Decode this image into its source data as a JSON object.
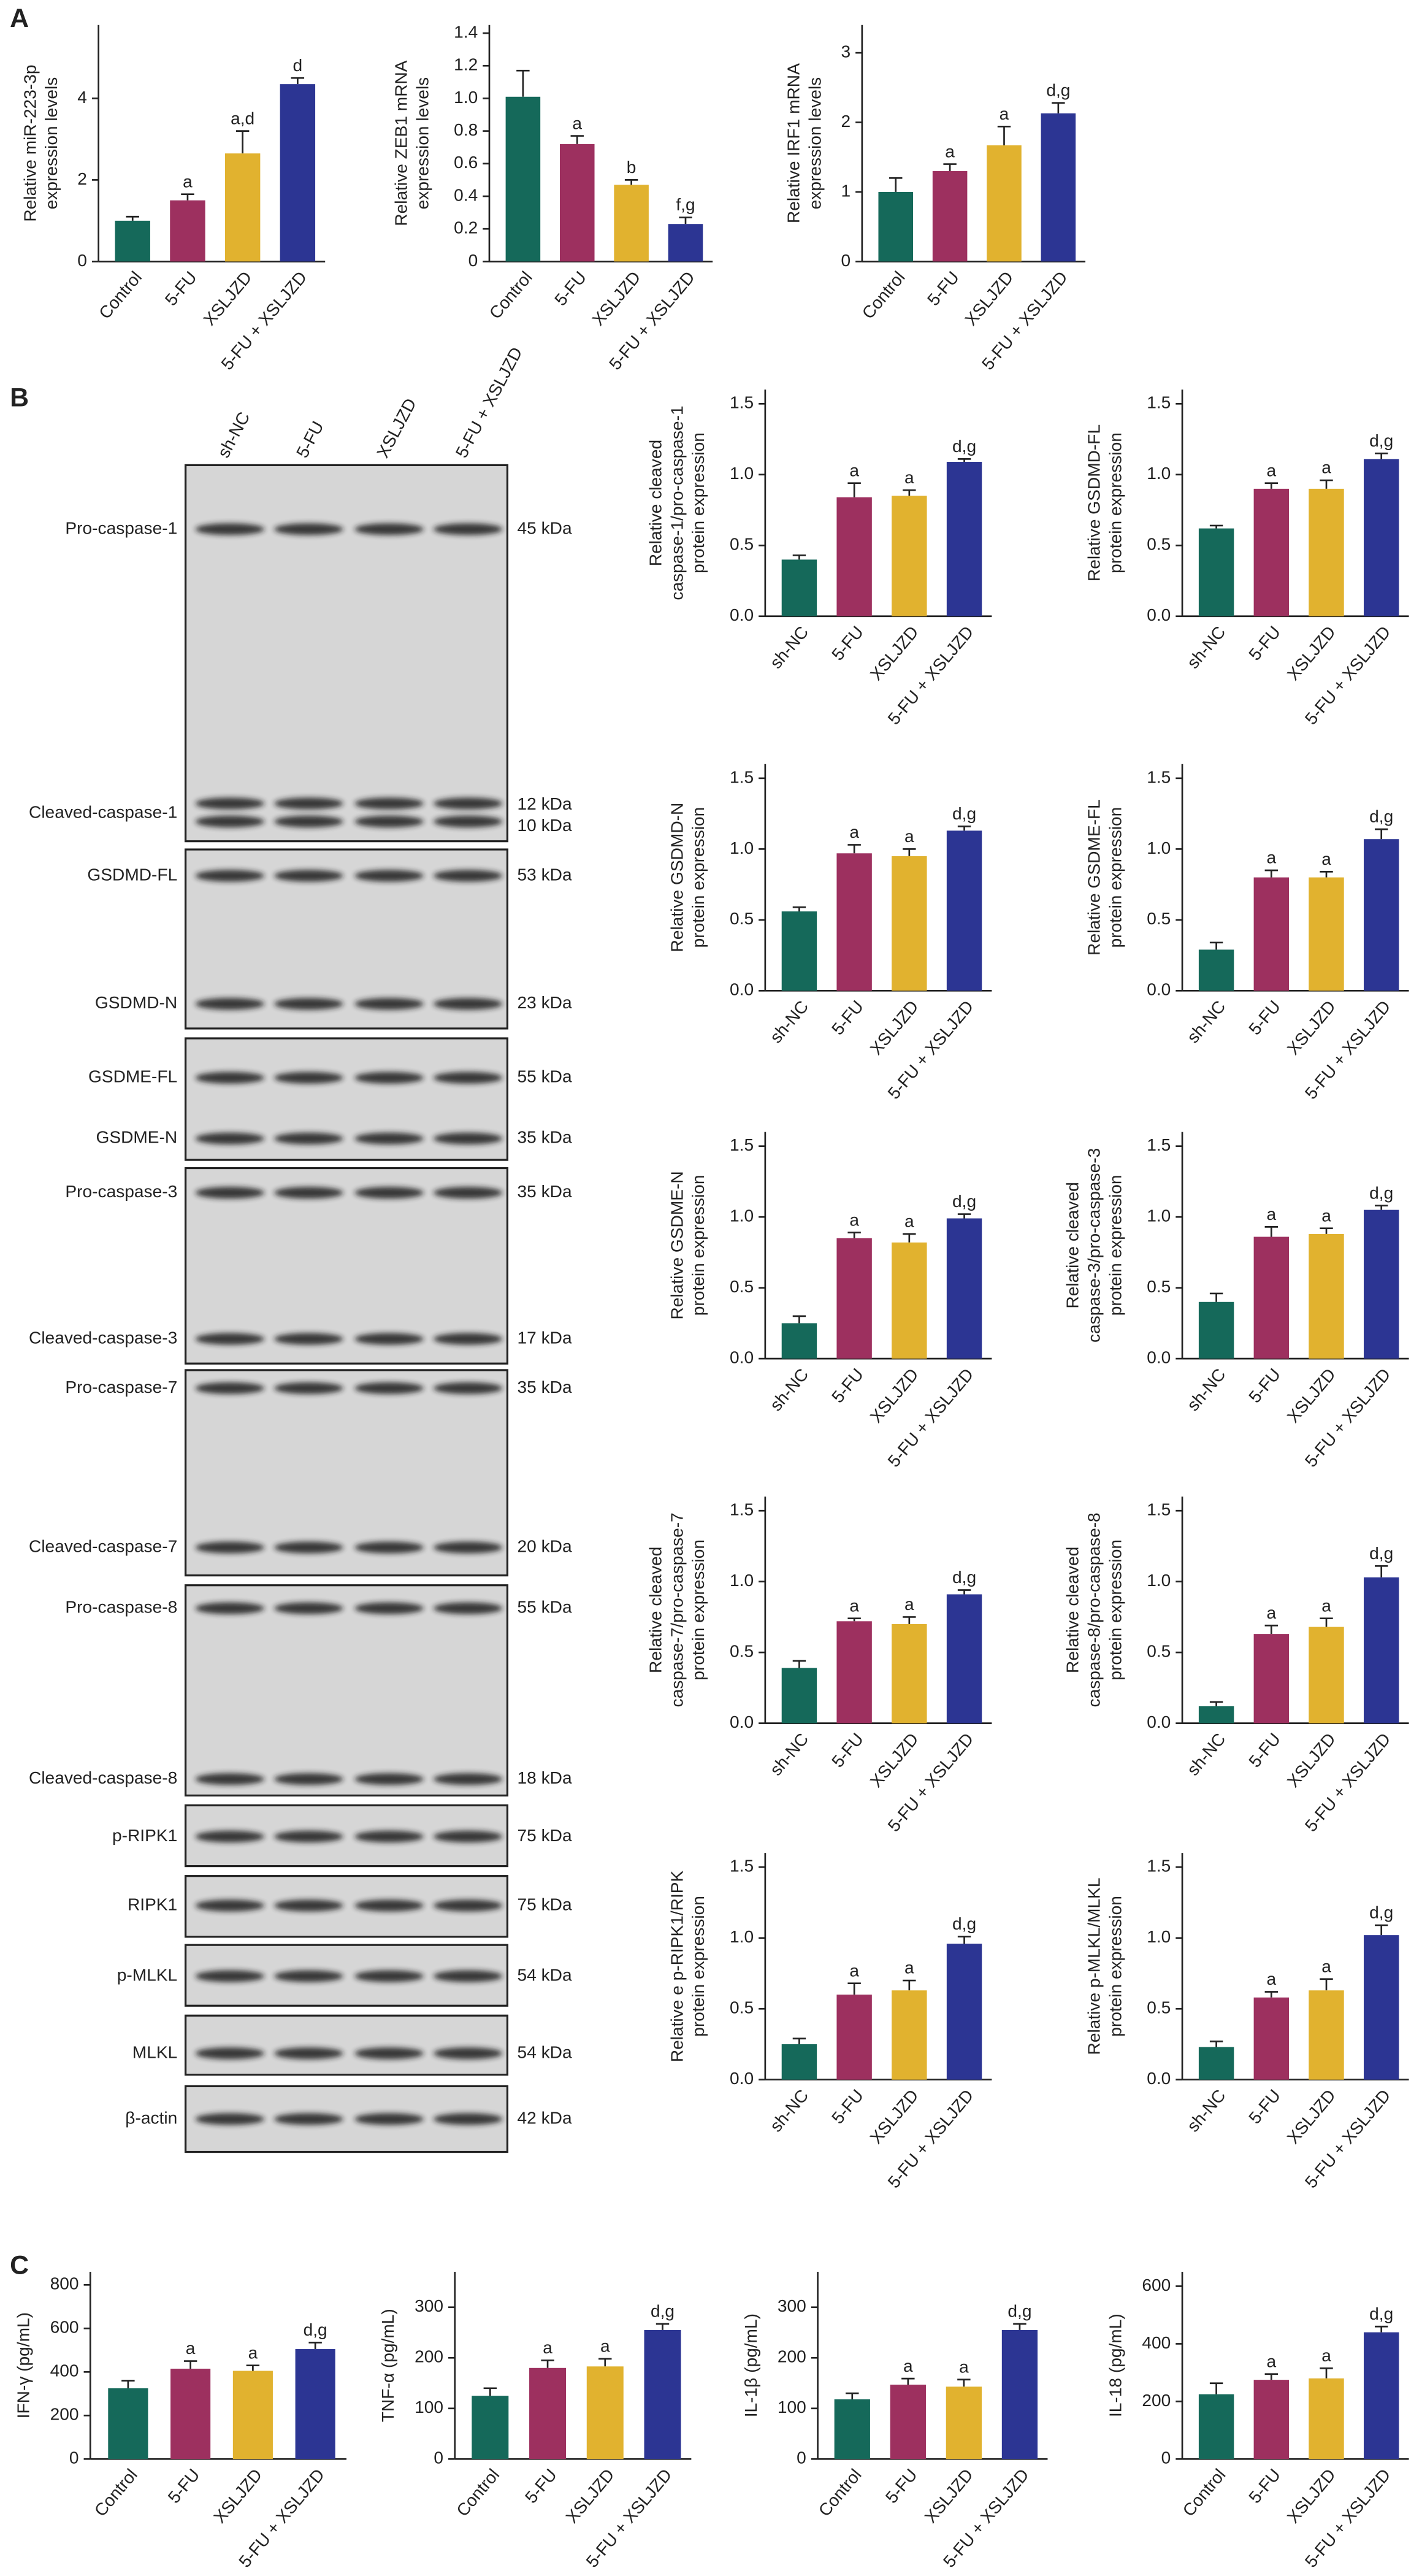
{
  "panel_labels": [
    "A",
    "B",
    "C"
  ],
  "blot": {
    "lanes": [
      "sh-NC",
      "5-FU",
      "XSLJZD",
      "5-FU + XSLJZD"
    ],
    "rows": [
      {
        "label": "Pro-caspase-1",
        "kda": [
          "45 kDa"
        ]
      },
      {
        "label": "Cleaved-caspase-1",
        "kda": [
          "12 kDa",
          "10 kDa"
        ]
      },
      {
        "label": "GSDMD-FL",
        "kda": [
          "53 kDa"
        ]
      },
      {
        "label": "GSDMD-N",
        "kda": [
          "23 kDa"
        ]
      },
      {
        "label": "GSDME-FL",
        "kda": [
          "55 kDa"
        ]
      },
      {
        "label": "GSDME-N",
        "kda": [
          "35 kDa"
        ]
      },
      {
        "label": "Pro-caspase-3",
        "kda": [
          "35 kDa"
        ]
      },
      {
        "label": "Cleaved-caspase-3",
        "kda": [
          "17 kDa"
        ]
      },
      {
        "label": "Pro-caspase-7",
        "kda": [
          "35 kDa"
        ]
      },
      {
        "label": "Cleaved-caspase-7",
        "kda": [
          "20 kDa"
        ]
      },
      {
        "label": "Pro-caspase-8",
        "kda": [
          "55 kDa"
        ]
      },
      {
        "label": "Cleaved-caspase-8",
        "kda": [
          "18 kDa"
        ]
      },
      {
        "label": "p-RIPK1",
        "kda": [
          "75 kDa"
        ]
      },
      {
        "label": "RIPK1",
        "kda": [
          "75 kDa"
        ]
      },
      {
        "label": "p-MLKL",
        "kda": [
          "54 kDa"
        ]
      },
      {
        "label": "MLKL",
        "kda": [
          "54 kDa"
        ]
      },
      {
        "label": "β-actin",
        "kda": [
          "42 kDa"
        ]
      }
    ]
  },
  "chart_data": [
    {
      "type": "bar",
      "ylabel": [
        "Relative miR-223-3p",
        "expression levels"
      ],
      "categories": [
        "Control",
        "5-FU",
        "XSLJZD",
        "5-FU + XSLJZD"
      ],
      "values": [
        1.0,
        1.5,
        2.65,
        4.35
      ],
      "errors": [
        0.1,
        0.15,
        0.55,
        0.15
      ],
      "bar_labels": [
        null,
        "a",
        "a,d",
        "d"
      ],
      "colors": [
        "#15695a",
        "#9d305f",
        "#e1b22f",
        "#2c3593"
      ],
      "ylim": [
        0,
        5.8
      ],
      "yticks": [
        0,
        2,
        4
      ]
    },
    {
      "type": "bar",
      "ylabel": [
        "Relative ZEB1 mRNA",
        "expression levels"
      ],
      "categories": [
        "Control",
        "5-FU",
        "XSLJZD",
        "5-FU + XSLJZD"
      ],
      "values": [
        1.01,
        0.72,
        0.47,
        0.23
      ],
      "errors": [
        0.16,
        0.05,
        0.03,
        0.04
      ],
      "bar_labels": [
        null,
        "a",
        "b",
        "f,g"
      ],
      "colors": [
        "#15695a",
        "#9d305f",
        "#e1b22f",
        "#2c3593"
      ],
      "ylim": [
        0,
        1.45
      ],
      "yticks": [
        0,
        0.2,
        0.4,
        0.6,
        0.8,
        {
          "value": 1,
          "label": "1.0"
        },
        1.2,
        1.4
      ]
    },
    {
      "type": "bar",
      "ylabel": [
        "Relative IRF1 mRNA",
        "expression levels"
      ],
      "categories": [
        "Control",
        "5-FU",
        "XSLJZD",
        "5-FU + XSLJZD"
      ],
      "values": [
        1.0,
        1.3,
        1.67,
        2.13
      ],
      "errors": [
        0.2,
        0.1,
        0.27,
        0.15
      ],
      "bar_labels": [
        null,
        "a",
        "a",
        "d,g"
      ],
      "colors": [
        "#15695a",
        "#9d305f",
        "#e1b22f",
        "#2c3593"
      ],
      "ylim": [
        0,
        3.4
      ],
      "yticks": [
        0,
        1,
        2,
        3
      ]
    },
    {
      "type": "bar",
      "ylabel": [
        "Relative cleaved",
        "caspase-1/pro-caspase-1",
        "protein expression"
      ],
      "categories": [
        "sh-NC",
        "5-FU",
        "XSLJZD",
        "5-FU + XSLJZD"
      ],
      "values": [
        0.4,
        0.84,
        0.85,
        1.09
      ],
      "errors": [
        0.03,
        0.1,
        0.04,
        0.02
      ],
      "bar_labels": [
        null,
        "a",
        "a",
        "d,g"
      ],
      "colors": [
        "#15695a",
        "#9d305f",
        "#e1b22f",
        "#2c3593"
      ],
      "ylim": [
        0,
        1.6
      ],
      "yticks": [
        {
          "value": 0,
          "label": "0.0"
        },
        {
          "value": 0.5,
          "label": "0.5"
        },
        {
          "value": 1,
          "label": "1.0"
        },
        {
          "value": 1.5,
          "label": "1.5"
        }
      ]
    },
    {
      "type": "bar",
      "ylabel": [
        "Relative GSDMD-FL",
        "protein expression"
      ],
      "categories": [
        "sh-NC",
        "5-FU",
        "XSLJZD",
        "5-FU + XSLJZD"
      ],
      "values": [
        0.62,
        0.9,
        0.9,
        1.11
      ],
      "errors": [
        0.02,
        0.04,
        0.06,
        0.04
      ],
      "bar_labels": [
        null,
        "a",
        "a",
        "d,g"
      ],
      "colors": [
        "#15695a",
        "#9d305f",
        "#e1b22f",
        "#2c3593"
      ],
      "ylim": [
        0,
        1.6
      ],
      "yticks": [
        {
          "value": 0,
          "label": "0.0"
        },
        {
          "value": 0.5,
          "label": "0.5"
        },
        {
          "value": 1,
          "label": "1.0"
        },
        {
          "value": 1.5,
          "label": "1.5"
        }
      ]
    },
    {
      "type": "bar",
      "ylabel": [
        "Relative GSDMD-N",
        "protein expression"
      ],
      "categories": [
        "sh-NC",
        "5-FU",
        "XSLJZD",
        "5-FU + XSLJZD"
      ],
      "values": [
        0.56,
        0.97,
        0.95,
        1.13
      ],
      "errors": [
        0.03,
        0.06,
        0.05,
        0.03
      ],
      "bar_labels": [
        null,
        "a",
        "a",
        "d,g"
      ],
      "colors": [
        "#15695a",
        "#9d305f",
        "#e1b22f",
        "#2c3593"
      ],
      "ylim": [
        0,
        1.6
      ],
      "yticks": [
        {
          "value": 0,
          "label": "0.0"
        },
        {
          "value": 0.5,
          "label": "0.5"
        },
        {
          "value": 1,
          "label": "1.0"
        },
        {
          "value": 1.5,
          "label": "1.5"
        }
      ]
    },
    {
      "type": "bar",
      "ylabel": [
        "Relative GSDME-FL",
        "protein expression"
      ],
      "categories": [
        "sh-NC",
        "5-FU",
        "XSLJZD",
        "5-FU + XSLJZD"
      ],
      "values": [
        0.29,
        0.8,
        0.8,
        1.07
      ],
      "errors": [
        0.05,
        0.05,
        0.04,
        0.07
      ],
      "bar_labels": [
        null,
        "a",
        "a",
        "d,g"
      ],
      "colors": [
        "#15695a",
        "#9d305f",
        "#e1b22f",
        "#2c3593"
      ],
      "ylim": [
        0,
        1.6
      ],
      "yticks": [
        {
          "value": 0,
          "label": "0.0"
        },
        {
          "value": 0.5,
          "label": "0.5"
        },
        {
          "value": 1,
          "label": "1.0"
        },
        {
          "value": 1.5,
          "label": "1.5"
        }
      ]
    },
    {
      "type": "bar",
      "ylabel": [
        "Relative GSDME-N",
        "protein expression"
      ],
      "categories": [
        "sh-NC",
        "5-FU",
        "XSLJZD",
        "5-FU + XSLJZD"
      ],
      "values": [
        0.25,
        0.85,
        0.82,
        0.99
      ],
      "errors": [
        0.05,
        0.04,
        0.06,
        0.03
      ],
      "bar_labels": [
        null,
        "a",
        "a",
        "d,g"
      ],
      "colors": [
        "#15695a",
        "#9d305f",
        "#e1b22f",
        "#2c3593"
      ],
      "ylim": [
        0,
        1.6
      ],
      "yticks": [
        {
          "value": 0,
          "label": "0.0"
        },
        {
          "value": 0.5,
          "label": "0.5"
        },
        {
          "value": 1,
          "label": "1.0"
        },
        {
          "value": 1.5,
          "label": "1.5"
        }
      ]
    },
    {
      "type": "bar",
      "ylabel": [
        "Relative cleaved",
        "caspase-3/pro-caspase-3",
        "protein expression"
      ],
      "categories": [
        "sh-NC",
        "5-FU",
        "XSLJZD",
        "5-FU + XSLJZD"
      ],
      "values": [
        0.4,
        0.86,
        0.88,
        1.05
      ],
      "errors": [
        0.06,
        0.07,
        0.04,
        0.03
      ],
      "bar_labels": [
        null,
        "a",
        "a",
        "d,g"
      ],
      "colors": [
        "#15695a",
        "#9d305f",
        "#e1b22f",
        "#2c3593"
      ],
      "ylim": [
        0,
        1.6
      ],
      "yticks": [
        {
          "value": 0,
          "label": "0.0"
        },
        {
          "value": 0.5,
          "label": "0.5"
        },
        {
          "value": 1,
          "label": "1.0"
        },
        {
          "value": 1.5,
          "label": "1.5"
        }
      ]
    },
    {
      "type": "bar",
      "ylabel": [
        "Relative cleaved",
        "caspase-7/pro-caspase-7",
        "protein expression"
      ],
      "categories": [
        "sh-NC",
        "5-FU",
        "XSLJZD",
        "5-FU + XSLJZD"
      ],
      "values": [
        0.39,
        0.72,
        0.7,
        0.91
      ],
      "errors": [
        0.05,
        0.02,
        0.05,
        0.03
      ],
      "bar_labels": [
        null,
        "a",
        "a",
        "d,g"
      ],
      "colors": [
        "#15695a",
        "#9d305f",
        "#e1b22f",
        "#2c3593"
      ],
      "ylim": [
        0,
        1.6
      ],
      "yticks": [
        {
          "value": 0,
          "label": "0.0"
        },
        {
          "value": 0.5,
          "label": "0.5"
        },
        {
          "value": 1,
          "label": "1.0"
        },
        {
          "value": 1.5,
          "label": "1.5"
        }
      ]
    },
    {
      "type": "bar",
      "ylabel": [
        "Relative cleaved",
        "caspase-8/pro-caspase-8",
        "protein expression"
      ],
      "categories": [
        "sh-NC",
        "5-FU",
        "XSLJZD",
        "5-FU + XSLJZD"
      ],
      "values": [
        0.12,
        0.63,
        0.68,
        1.03
      ],
      "errors": [
        0.03,
        0.06,
        0.06,
        0.08
      ],
      "bar_labels": [
        null,
        "a",
        "a",
        "d,g"
      ],
      "colors": [
        "#15695a",
        "#9d305f",
        "#e1b22f",
        "#2c3593"
      ],
      "ylim": [
        0,
        1.6
      ],
      "yticks": [
        {
          "value": 0,
          "label": "0.0"
        },
        {
          "value": 0.5,
          "label": "0.5"
        },
        {
          "value": 1,
          "label": "1.0"
        },
        {
          "value": 1.5,
          "label": "1.5"
        }
      ]
    },
    {
      "type": "bar",
      "ylabel": [
        "Relative e p-RIPK1/RIPK",
        "protein expression"
      ],
      "categories": [
        "sh-NC",
        "5-FU",
        "XSLJZD",
        "5-FU + XSLJZD"
      ],
      "values": [
        0.25,
        0.6,
        0.63,
        0.96
      ],
      "errors": [
        0.04,
        0.08,
        0.07,
        0.05
      ],
      "bar_labels": [
        null,
        "a",
        "a",
        "d,g"
      ],
      "colors": [
        "#15695a",
        "#9d305f",
        "#e1b22f",
        "#2c3593"
      ],
      "ylim": [
        0,
        1.6
      ],
      "yticks": [
        {
          "value": 0,
          "label": "0.0"
        },
        {
          "value": 0.5,
          "label": "0.5"
        },
        {
          "value": 1,
          "label": "1.0"
        },
        {
          "value": 1.5,
          "label": "1.5"
        }
      ]
    },
    {
      "type": "bar",
      "ylabel": [
        "Relative p-MLKL/MLKL",
        "protein expression"
      ],
      "categories": [
        "sh-NC",
        "5-FU",
        "XSLJZD",
        "5-FU + XSLJZD"
      ],
      "values": [
        0.23,
        0.58,
        0.63,
        1.02
      ],
      "errors": [
        0.04,
        0.04,
        0.08,
        0.07
      ],
      "bar_labels": [
        null,
        "a",
        "a",
        "d,g"
      ],
      "colors": [
        "#15695a",
        "#9d305f",
        "#e1b22f",
        "#2c3593"
      ],
      "ylim": [
        0,
        1.6
      ],
      "yticks": [
        {
          "value": 0,
          "label": "0.0"
        },
        {
          "value": 0.5,
          "label": "0.5"
        },
        {
          "value": 1,
          "label": "1.0"
        },
        {
          "value": 1.5,
          "label": "1.5"
        }
      ]
    },
    {
      "type": "bar",
      "ylabel": [
        "IFN-γ (pg/mL)"
      ],
      "categories": [
        "Control",
        "5-FU",
        "XSLJZD",
        "5-FU + XSLJZD"
      ],
      "values": [
        325,
        415,
        405,
        505
      ],
      "errors": [
        35,
        35,
        25,
        30
      ],
      "bar_labels": [
        null,
        "a",
        "a",
        "d,g"
      ],
      "colors": [
        "#15695a",
        "#9d305f",
        "#e1b22f",
        "#2c3593"
      ],
      "ylim": [
        0,
        860
      ],
      "yticks": [
        0,
        200,
        400,
        600,
        800
      ]
    },
    {
      "type": "bar",
      "ylabel": [
        "TNF-α (pg/mL)"
      ],
      "categories": [
        "Control",
        "5-FU",
        "XSLJZD",
        "5-FU + XSLJZD"
      ],
      "values": [
        125,
        180,
        183,
        255
      ],
      "errors": [
        15,
        15,
        15,
        12
      ],
      "bar_labels": [
        null,
        "a",
        "a",
        "d,g"
      ],
      "colors": [
        "#15695a",
        "#9d305f",
        "#e1b22f",
        "#2c3593"
      ],
      "ylim": [
        0,
        370
      ],
      "yticks": [
        0,
        100,
        200,
        300
      ]
    },
    {
      "type": "bar",
      "ylabel": [
        "IL-1β (pg/mL)"
      ],
      "categories": [
        "Control",
        "5-FU",
        "XSLJZD",
        "5-FU + XSLJZD"
      ],
      "values": [
        118,
        147,
        143,
        255
      ],
      "errors": [
        12,
        12,
        14,
        12
      ],
      "bar_labels": [
        null,
        "a",
        "a",
        "d,g"
      ],
      "colors": [
        "#15695a",
        "#9d305f",
        "#e1b22f",
        "#2c3593"
      ],
      "ylim": [
        0,
        370
      ],
      "yticks": [
        0,
        100,
        200,
        300
      ]
    },
    {
      "type": "bar",
      "ylabel": [
        "IL-18 (pg/mL)"
      ],
      "categories": [
        "Control",
        "5-FU",
        "XSLJZD",
        "5-FU + XSLJZD"
      ],
      "values": [
        225,
        275,
        280,
        440
      ],
      "errors": [
        38,
        20,
        35,
        20
      ],
      "bar_labels": [
        null,
        "a",
        "a",
        "d,g"
      ],
      "colors": [
        "#15695a",
        "#9d305f",
        "#e1b22f",
        "#2c3593"
      ],
      "ylim": [
        0,
        650
      ],
      "yticks": [
        0,
        200,
        400,
        600
      ]
    }
  ]
}
